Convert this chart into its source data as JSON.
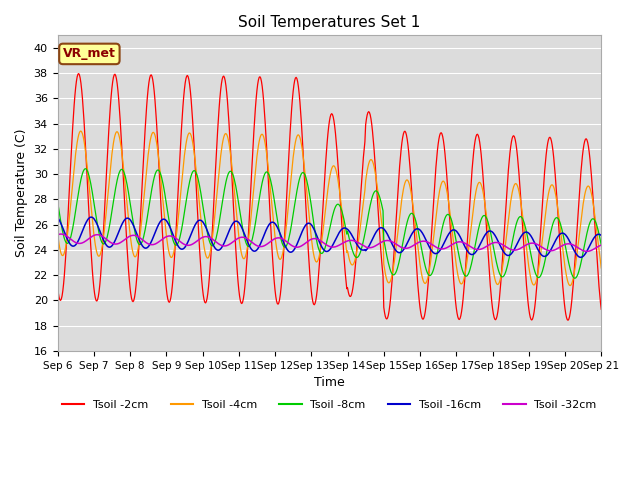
{
  "title": "Soil Temperatures Set 1",
  "xlabel": "Time",
  "ylabel": "Soil Temperature (C)",
  "ylim": [
    16,
    41
  ],
  "yticks": [
    16,
    18,
    20,
    22,
    24,
    26,
    28,
    30,
    32,
    34,
    36,
    38,
    40
  ],
  "x_tick_labels": [
    "Sep 6",
    "Sep 7",
    "Sep 8",
    "Sep 9",
    "Sep 10",
    "Sep 11",
    "Sep 12",
    "Sep 13",
    "Sep 14",
    "Sep 15",
    "Sep 16",
    "Sep 17",
    "Sep 18",
    "Sep 19",
    "Sep 20",
    "Sep 21"
  ],
  "colors": {
    "Tsoil -2cm": "#ff0000",
    "Tsoil -4cm": "#ff9900",
    "Tsoil -8cm": "#00cc00",
    "Tsoil -16cm": "#0000cc",
    "Tsoil -32cm": "#cc00cc"
  },
  "legend_label": "VR_met",
  "background_color": "#dcdcdc",
  "figure_background": "#ffffff",
  "grid_color": "#ffffff"
}
